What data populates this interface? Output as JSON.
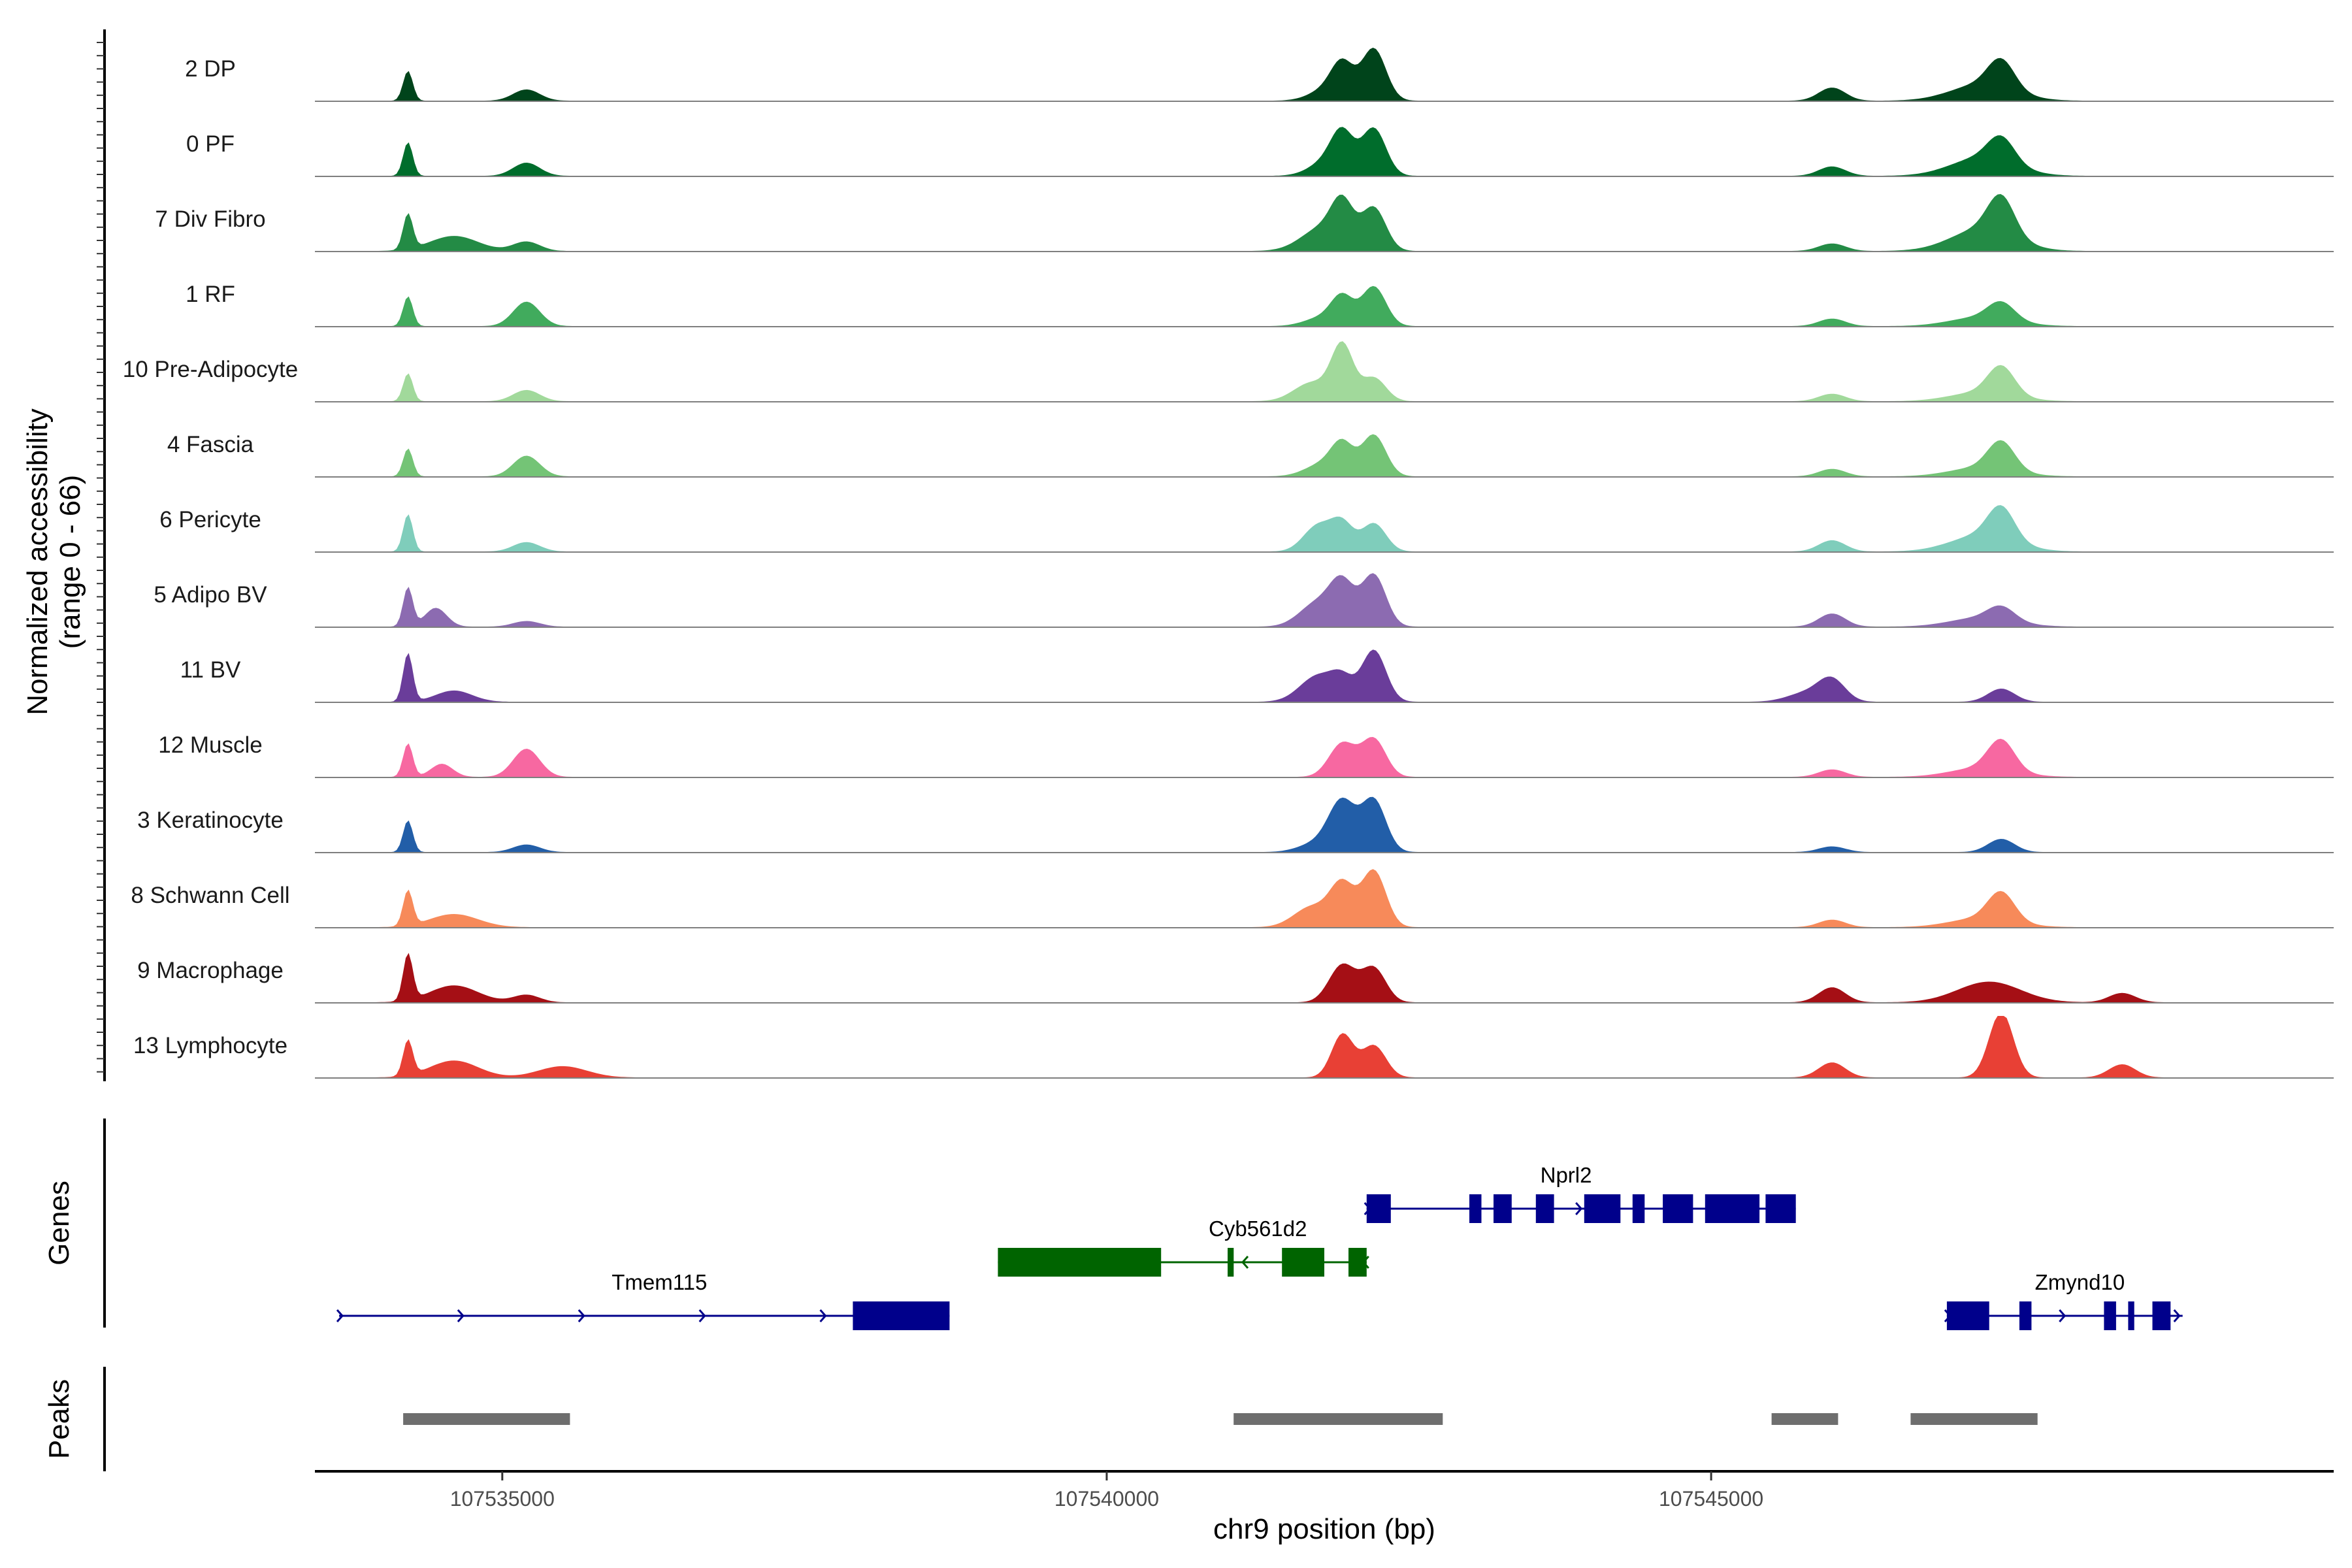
{
  "chart_data": {
    "type": "area",
    "title": "",
    "chromosome": "chr9",
    "xlabel": "chr9 position (bp)",
    "ylabel": "Normalized accessibility",
    "ylabel_range": "(range 0 - 66)",
    "xlim": [
      107533450,
      107550150
    ],
    "ylim": [
      0,
      66
    ],
    "x_ticks": [
      107535000,
      107540000,
      107545000
    ],
    "x_tick_labels": [
      "107535000",
      "107540000",
      "107545000"
    ],
    "panel_labels": {
      "genes": "Genes",
      "peaks": "Peaks"
    },
    "series": [
      {
        "name": "2 DP",
        "color": "#00441b",
        "peaks": [
          [
            107534220,
            32,
            40
          ],
          [
            107535200,
            12,
            110
          ],
          [
            107541850,
            14,
            150
          ],
          [
            107541950,
            32,
            90
          ],
          [
            107542210,
            55,
            100
          ],
          [
            107546000,
            14,
            110
          ],
          [
            107547250,
            18,
            260
          ],
          [
            107547400,
            30,
            110
          ]
        ]
      },
      {
        "name": "0 PF",
        "color": "#006d2c",
        "peaks": [
          [
            107534220,
            36,
            40
          ],
          [
            107535200,
            14,
            110
          ],
          [
            107541850,
            18,
            150
          ],
          [
            107541950,
            36,
            90
          ],
          [
            107542210,
            50,
            100
          ],
          [
            107546000,
            10,
            110
          ],
          [
            107547250,
            20,
            260
          ],
          [
            107547400,
            26,
            110
          ]
        ]
      },
      {
        "name": "7 Div Fibro",
        "color": "#238b45",
        "peaks": [
          [
            107534220,
            38,
            40
          ],
          [
            107534600,
            16,
            200
          ],
          [
            107535200,
            10,
            110
          ],
          [
            107541800,
            26,
            180
          ],
          [
            107541950,
            40,
            90
          ],
          [
            107542210,
            45,
            100
          ],
          [
            107546000,
            8,
            110
          ],
          [
            107547250,
            24,
            260
          ],
          [
            107547400,
            40,
            110
          ]
        ]
      },
      {
        "name": "1 RF",
        "color": "#41ab5d",
        "peaks": [
          [
            107534220,
            32,
            40
          ],
          [
            107535200,
            26,
            110
          ],
          [
            107541800,
            10,
            150
          ],
          [
            107541950,
            28,
            90
          ],
          [
            107542210,
            42,
            100
          ],
          [
            107546000,
            8,
            110
          ],
          [
            107547250,
            10,
            260
          ],
          [
            107547400,
            18,
            110
          ]
        ]
      },
      {
        "name": "10 Pre-Adipocyte",
        "color": "#a1d99b",
        "peaks": [
          [
            107534220,
            30,
            40
          ],
          [
            107535200,
            12,
            110
          ],
          [
            107541700,
            20,
            150
          ],
          [
            107541950,
            58,
            90
          ],
          [
            107542210,
            25,
            100
          ],
          [
            107546000,
            8,
            110
          ],
          [
            107547250,
            10,
            260
          ],
          [
            107547400,
            30,
            110
          ]
        ]
      },
      {
        "name": "4 Fascia",
        "color": "#74c476",
        "peaks": [
          [
            107534220,
            30,
            40
          ],
          [
            107535200,
            22,
            110
          ],
          [
            107541800,
            14,
            150
          ],
          [
            107541950,
            30,
            90
          ],
          [
            107542210,
            44,
            100
          ],
          [
            107546000,
            8,
            110
          ],
          [
            107547250,
            10,
            260
          ],
          [
            107547400,
            30,
            110
          ]
        ]
      },
      {
        "name": "6 Pericyte",
        "color": "#7fcdbb",
        "peaks": [
          [
            107534220,
            40,
            40
          ],
          [
            107535200,
            10,
            110
          ],
          [
            107541750,
            28,
            120
          ],
          [
            107541950,
            28,
            90
          ],
          [
            107542210,
            30,
            100
          ],
          [
            107546000,
            12,
            110
          ],
          [
            107547250,
            18,
            260
          ],
          [
            107547400,
            34,
            110
          ]
        ]
      },
      {
        "name": "5 Adipo BV",
        "color": "#8c6bb1",
        "peaks": [
          [
            107534220,
            42,
            40
          ],
          [
            107534450,
            20,
            90
          ],
          [
            107535200,
            6,
            110
          ],
          [
            107541750,
            26,
            150
          ],
          [
            107541950,
            42,
            100
          ],
          [
            107542210,
            55,
            100
          ],
          [
            107546000,
            14,
            110
          ],
          [
            107547250,
            10,
            260
          ],
          [
            107547400,
            14,
            110
          ]
        ]
      },
      {
        "name": "11 BV",
        "color": "#6a3d9a",
        "peaks": [
          [
            107534220,
            52,
            40
          ],
          [
            107534600,
            12,
            150
          ],
          [
            107541750,
            28,
            150
          ],
          [
            107541950,
            20,
            90
          ],
          [
            107542210,
            55,
            100
          ],
          [
            107545800,
            10,
            160
          ],
          [
            107546000,
            22,
            110
          ],
          [
            107547400,
            14,
            110
          ]
        ]
      },
      {
        "name": "12 Muscle",
        "color": "#f768a1",
        "peaks": [
          [
            107534220,
            36,
            40
          ],
          [
            107534500,
            14,
            90
          ],
          [
            107535200,
            30,
            110
          ],
          [
            107541950,
            36,
            110
          ],
          [
            107542210,
            40,
            100
          ],
          [
            107546000,
            8,
            110
          ],
          [
            107547250,
            10,
            260
          ],
          [
            107547400,
            32,
            110
          ]
        ]
      },
      {
        "name": "3 Keratinocyte",
        "color": "#225ea8",
        "peaks": [
          [
            107534220,
            34,
            40
          ],
          [
            107535200,
            8,
            110
          ],
          [
            107541750,
            10,
            150
          ],
          [
            107541950,
            52,
            110
          ],
          [
            107542210,
            55,
            100
          ],
          [
            107546000,
            6,
            110
          ],
          [
            107547400,
            14,
            110
          ]
        ]
      },
      {
        "name": "8 Schwann Cell",
        "color": "#f78a5a",
        "peaks": [
          [
            107534220,
            38,
            40
          ],
          [
            107534600,
            14,
            200
          ],
          [
            107541700,
            22,
            150
          ],
          [
            107541950,
            44,
            100
          ],
          [
            107542210,
            60,
            100
          ],
          [
            107546000,
            8,
            110
          ],
          [
            107547250,
            10,
            260
          ],
          [
            107547400,
            30,
            110
          ]
        ]
      },
      {
        "name": "9 Macrophage",
        "color": "#a50f15",
        "peaks": [
          [
            107534220,
            50,
            40
          ],
          [
            107534600,
            18,
            200
          ],
          [
            107535200,
            8,
            110
          ],
          [
            107541950,
            40,
            110
          ],
          [
            107542210,
            36,
            100
          ],
          [
            107546000,
            16,
            110
          ],
          [
            107547300,
            22,
            260
          ],
          [
            107548400,
            10,
            110
          ]
        ]
      },
      {
        "name": "13 Lymphocyte",
        "color": "#e84035",
        "peaks": [
          [
            107534220,
            38,
            40
          ],
          [
            107534600,
            18,
            200
          ],
          [
            107535500,
            12,
            200
          ],
          [
            107541950,
            46,
            90
          ],
          [
            107542210,
            34,
            100
          ],
          [
            107546000,
            16,
            110
          ],
          [
            107547400,
            70,
            100
          ],
          [
            107548400,
            14,
            110
          ]
        ]
      }
    ],
    "genes": [
      {
        "name": "Nprl2",
        "color": "#00008b",
        "strand": "+",
        "row": 0,
        "start": 107542150,
        "end": 107545700,
        "exons": [
          [
            107542150,
            107542350
          ],
          [
            107543000,
            107543100
          ],
          [
            107543200,
            107543350
          ],
          [
            107543550,
            107543700
          ],
          [
            107543950,
            107544250
          ],
          [
            107544350,
            107544450
          ],
          [
            107544600,
            107544850
          ],
          [
            107544950,
            107545400
          ],
          [
            107545450,
            107545700
          ]
        ]
      },
      {
        "name": "Cyb561d2",
        "color": "#006400",
        "strand": "-",
        "row": 1,
        "start": 107539100,
        "end": 107542150,
        "exons": [
          [
            107539100,
            107540450
          ],
          [
            107541000,
            107541050
          ],
          [
            107541450,
            107541800
          ],
          [
            107542000,
            107542150
          ]
        ]
      },
      {
        "name": "Tmem115",
        "color": "#00008b",
        "strand": "+",
        "row": 2,
        "start": 107533650,
        "end": 107538700,
        "exons": [
          [
            107537900,
            107538700
          ]
        ]
      },
      {
        "name": "Zmynd10",
        "color": "#00008b",
        "strand": "+",
        "row": 2,
        "start": 107546950,
        "end": 107548900,
        "exons": [
          [
            107546950,
            107547300
          ],
          [
            107547550,
            107547650
          ],
          [
            107548250,
            107548350
          ],
          [
            107548450,
            107548500
          ],
          [
            107548650,
            107548800
          ]
        ]
      }
    ],
    "peak_regions": [
      [
        107534180,
        107535560
      ],
      [
        107541050,
        107542780
      ],
      [
        107545500,
        107546050
      ],
      [
        107546650,
        107547700
      ]
    ]
  }
}
